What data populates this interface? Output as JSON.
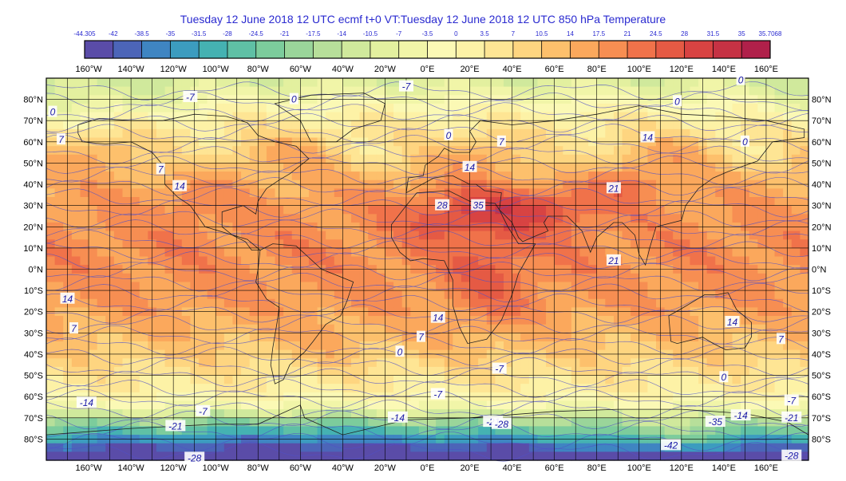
{
  "title": "Tuesday 12 June 2018 12 UTC ecmf t+0 VT:Tuesday 12 June 2018 12 UTC 850 hPa  Temperature",
  "colorbar": {
    "labels": [
      "-44.305",
      "-42",
      "-38.5",
      "-35",
      "-31.5",
      "-28",
      "-24.5",
      "-21",
      "-17.5",
      "-14",
      "-10.5",
      "-7",
      "-3.5",
      "0",
      "3.5",
      "7",
      "10.5",
      "14",
      "17.5",
      "21",
      "24.5",
      "28",
      "31.5",
      "35",
      "35.7068"
    ],
    "colors": [
      "#5a4ca8",
      "#4c65b8",
      "#3f85c2",
      "#3c9cbf",
      "#45b2b2",
      "#5fc0a5",
      "#7ccc9c",
      "#9ad59a",
      "#b7df9a",
      "#d0e99c",
      "#e3f09f",
      "#f1f5a8",
      "#fbf9b5",
      "#fdf2a6",
      "#fee594",
      "#fed580",
      "#fdc06c",
      "#fba85c",
      "#f78e52",
      "#f0724a",
      "#e55a44",
      "#d84342",
      "#c63244",
      "#b0204a"
    ]
  },
  "axes": {
    "lon_labels": [
      "160°W",
      "140°W",
      "120°W",
      "100°W",
      "80°W",
      "60°W",
      "40°W",
      "20°W",
      "0°E",
      "20°E",
      "40°E",
      "60°E",
      "80°E",
      "100°E",
      "120°E",
      "140°E",
      "160°E"
    ],
    "lat_labels": [
      "80°N",
      "70°N",
      "60°N",
      "50°N",
      "40°N",
      "30°N",
      "20°N",
      "10°N",
      "0°N",
      "10°S",
      "20°S",
      "30°S",
      "40°S",
      "50°S",
      "60°S",
      "70°S",
      "80°S"
    ]
  },
  "contour_labels": [
    {
      "text": "-7",
      "lon": -112,
      "lat": 81
    },
    {
      "text": "0",
      "lon": -63,
      "lat": 80
    },
    {
      "text": "-7",
      "lon": -10,
      "lat": 86
    },
    {
      "text": "0",
      "lon": -177,
      "lat": 74
    },
    {
      "text": "0",
      "lon": 148,
      "lat": 89
    },
    {
      "text": "0",
      "lon": 118,
      "lat": 79
    },
    {
      "text": "7",
      "lon": -173,
      "lat": 61
    },
    {
      "text": "0",
      "lon": 10,
      "lat": 63
    },
    {
      "text": "7",
      "lon": 35,
      "lat": 60
    },
    {
      "text": "14",
      "lon": 104,
      "lat": 62
    },
    {
      "text": "0",
      "lon": 150,
      "lat": 60
    },
    {
      "text": "7",
      "lon": -126,
      "lat": 47
    },
    {
      "text": "14",
      "lon": 20,
      "lat": 48
    },
    {
      "text": "14",
      "lon": -117,
      "lat": 39
    },
    {
      "text": "21",
      "lon": 88,
      "lat": 38
    },
    {
      "text": "28",
      "lon": 7,
      "lat": 30
    },
    {
      "text": "35",
      "lon": 24,
      "lat": 30
    },
    {
      "text": "21",
      "lon": 88,
      "lat": 4
    },
    {
      "text": "14",
      "lon": -170,
      "lat": -14
    },
    {
      "text": "7",
      "lon": -167,
      "lat": -28
    },
    {
      "text": "14",
      "lon": 5,
      "lat": -23
    },
    {
      "text": "7",
      "lon": -3,
      "lat": -32
    },
    {
      "text": "14",
      "lon": 144,
      "lat": -25
    },
    {
      "text": "7",
      "lon": 167,
      "lat": -33
    },
    {
      "text": "0",
      "lon": -13,
      "lat": -39
    },
    {
      "text": "-7",
      "lon": 34,
      "lat": -47
    },
    {
      "text": "0",
      "lon": 140,
      "lat": -51
    },
    {
      "text": "-14",
      "lon": -161,
      "lat": -63
    },
    {
      "text": "-7",
      "lon": 5,
      "lat": -59
    },
    {
      "text": "-7",
      "lon": -106,
      "lat": -67
    },
    {
      "text": "-7",
      "lon": 172,
      "lat": -62
    },
    {
      "text": "-14",
      "lon": -14,
      "lat": -70
    },
    {
      "text": "-14",
      "lon": 148,
      "lat": -69
    },
    {
      "text": "-21",
      "lon": -119,
      "lat": -74
    },
    {
      "text": "-21",
      "lon": 31,
      "lat": -72
    },
    {
      "text": "-28",
      "lon": 35,
      "lat": -73
    },
    {
      "text": "-35",
      "lon": 136,
      "lat": -72
    },
    {
      "text": "-21",
      "lon": 172,
      "lat": -70
    },
    {
      "text": "-42",
      "lon": 115,
      "lat": -83
    },
    {
      "text": "-28",
      "lon": -110,
      "lat": -89
    },
    {
      "text": "-28",
      "lon": 172,
      "lat": -88
    }
  ]
}
